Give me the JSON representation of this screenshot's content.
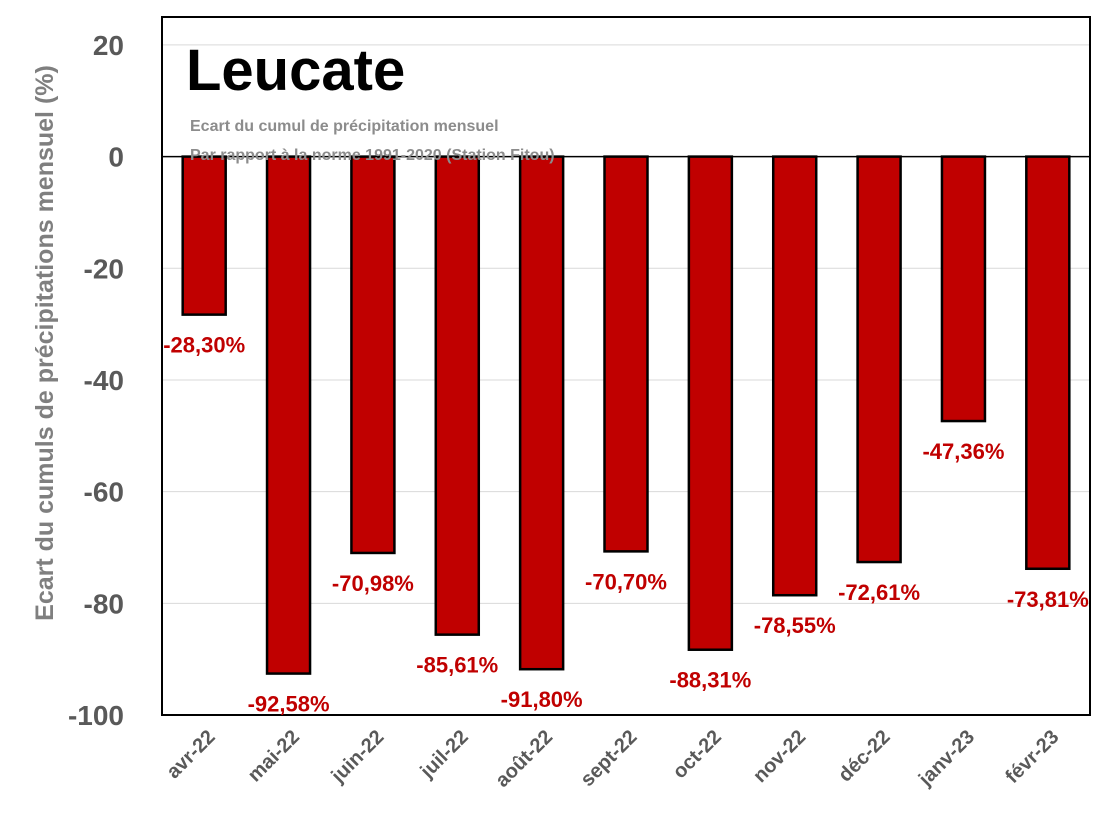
{
  "chart_data": {
    "type": "bar",
    "title": "Leucate",
    "subtitle_lines": [
      "Ecart du cumul de précipitation mensuel",
      "Par rapport à la norme 1991-2020 (Station Fitou)"
    ],
    "xlabel": "",
    "ylabel": "Ecart du cumuls de précipitations mensuel (%)",
    "ylim": [
      -100,
      25
    ],
    "yticks": [
      20,
      0,
      -20,
      -40,
      -60,
      -80,
      -100
    ],
    "ytick_labels": [
      "20",
      "0",
      "-20",
      "-40",
      "-60",
      "-80",
      "-100"
    ],
    "grid": true,
    "categories": [
      "avr-22",
      "mai-22",
      "juin-22",
      "juil-22",
      "août-22",
      "sept-22",
      "oct-22",
      "nov-22",
      "déc-22",
      "janv-23",
      "févr-23"
    ],
    "values": [
      -28.3,
      -92.58,
      -70.98,
      -85.61,
      -91.8,
      -70.7,
      -88.31,
      -78.55,
      -72.61,
      -47.36,
      -73.81
    ],
    "data_labels": [
      "-28,30%",
      "-92,58%",
      "-70,98%",
      "-85,61%",
      "-91,80%",
      "-70,70%",
      "-88,31%",
      "-78,55%",
      "-72,61%",
      "-47,36%",
      "-73,81%"
    ],
    "colors": {
      "bar_fill": "#c00000",
      "bar_stroke": "#000000",
      "data_label": "#c00000",
      "gridline": "#d9d9d9"
    }
  }
}
